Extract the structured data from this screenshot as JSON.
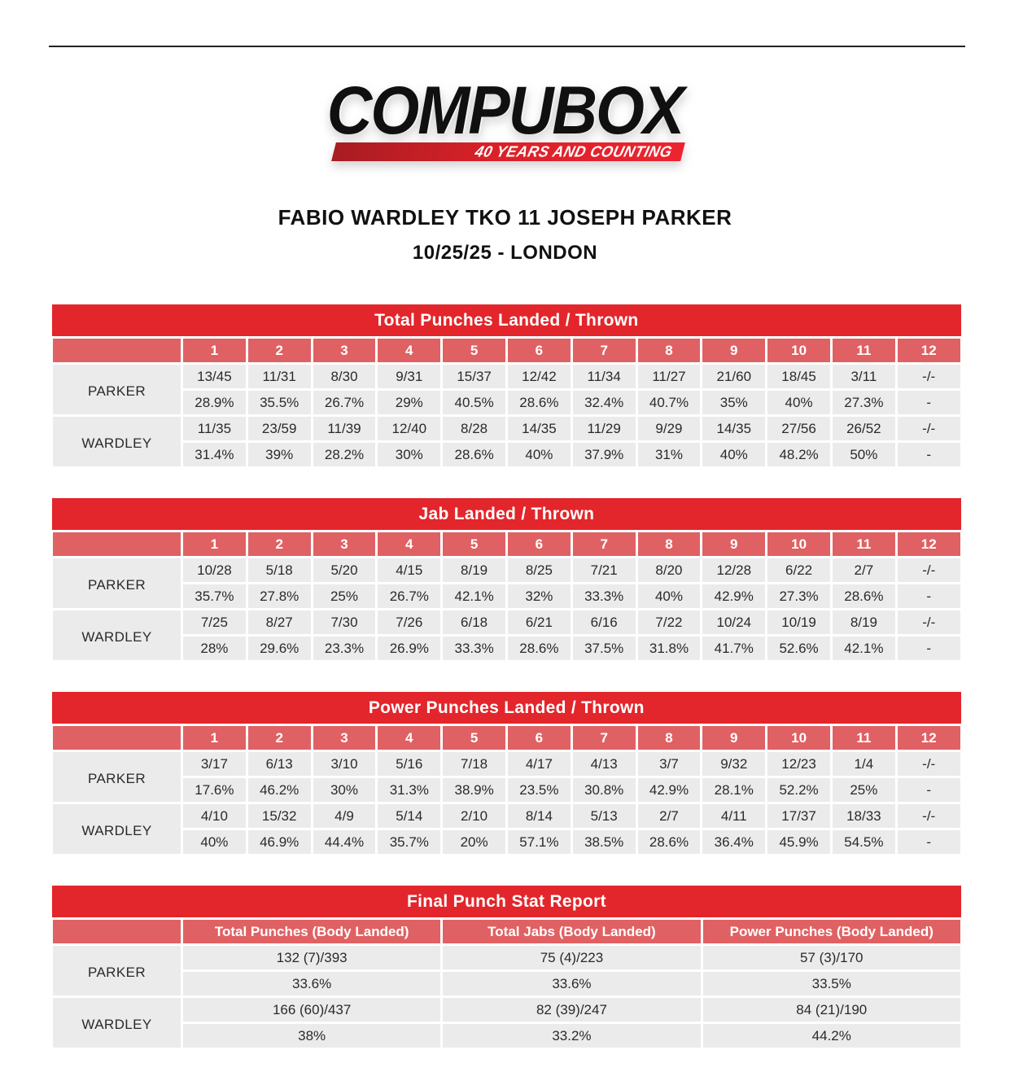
{
  "logo": {
    "brand": "COMPUBOX",
    "tagline": "40 YEARS AND COUNTING"
  },
  "header": {
    "title": "FABIO WARDLEY TKO 11 JOSEPH PARKER",
    "subtitle": "10/25/25 - LONDON"
  },
  "colors": {
    "header_red": "#e2262b",
    "subheader_red": "#e06163",
    "row_gray": "#ebebeb"
  },
  "round_tables": [
    {
      "title": "Total Punches Landed / Thrown",
      "rounds": [
        "1",
        "2",
        "3",
        "4",
        "5",
        "6",
        "7",
        "8",
        "9",
        "10",
        "11",
        "12"
      ],
      "rows": [
        {
          "fighter": "PARKER",
          "values": [
            "13/45",
            "11/31",
            "8/30",
            "9/31",
            "15/37",
            "12/42",
            "11/34",
            "11/27",
            "21/60",
            "18/45",
            "3/11",
            "-/-"
          ],
          "pcts": [
            "28.9%",
            "35.5%",
            "26.7%",
            "29%",
            "40.5%",
            "28.6%",
            "32.4%",
            "40.7%",
            "35%",
            "40%",
            "27.3%",
            "-"
          ]
        },
        {
          "fighter": "WARDLEY",
          "values": [
            "11/35",
            "23/59",
            "11/39",
            "12/40",
            "8/28",
            "14/35",
            "11/29",
            "9/29",
            "14/35",
            "27/56",
            "26/52",
            "-/-"
          ],
          "pcts": [
            "31.4%",
            "39%",
            "28.2%",
            "30%",
            "28.6%",
            "40%",
            "37.9%",
            "31%",
            "40%",
            "48.2%",
            "50%",
            "-"
          ]
        }
      ]
    },
    {
      "title": "Jab Landed / Thrown",
      "rounds": [
        "1",
        "2",
        "3",
        "4",
        "5",
        "6",
        "7",
        "8",
        "9",
        "10",
        "11",
        "12"
      ],
      "rows": [
        {
          "fighter": "PARKER",
          "values": [
            "10/28",
            "5/18",
            "5/20",
            "4/15",
            "8/19",
            "8/25",
            "7/21",
            "8/20",
            "12/28",
            "6/22",
            "2/7",
            "-/-"
          ],
          "pcts": [
            "35.7%",
            "27.8%",
            "25%",
            "26.7%",
            "42.1%",
            "32%",
            "33.3%",
            "40%",
            "42.9%",
            "27.3%",
            "28.6%",
            "-"
          ]
        },
        {
          "fighter": "WARDLEY",
          "values": [
            "7/25",
            "8/27",
            "7/30",
            "7/26",
            "6/18",
            "6/21",
            "6/16",
            "7/22",
            "10/24",
            "10/19",
            "8/19",
            "-/-"
          ],
          "pcts": [
            "28%",
            "29.6%",
            "23.3%",
            "26.9%",
            "33.3%",
            "28.6%",
            "37.5%",
            "31.8%",
            "41.7%",
            "52.6%",
            "42.1%",
            "-"
          ]
        }
      ]
    },
    {
      "title": "Power Punches Landed / Thrown",
      "rounds": [
        "1",
        "2",
        "3",
        "4",
        "5",
        "6",
        "7",
        "8",
        "9",
        "10",
        "11",
        "12"
      ],
      "rows": [
        {
          "fighter": "PARKER",
          "values": [
            "3/17",
            "6/13",
            "3/10",
            "5/16",
            "7/18",
            "4/17",
            "4/13",
            "3/7",
            "9/32",
            "12/23",
            "1/4",
            "-/-"
          ],
          "pcts": [
            "17.6%",
            "46.2%",
            "30%",
            "31.3%",
            "38.9%",
            "23.5%",
            "30.8%",
            "42.9%",
            "28.1%",
            "52.2%",
            "25%",
            "-"
          ]
        },
        {
          "fighter": "WARDLEY",
          "values": [
            "4/10",
            "15/32",
            "4/9",
            "5/14",
            "2/10",
            "8/14",
            "5/13",
            "2/7",
            "4/11",
            "17/37",
            "18/33",
            "-/-"
          ],
          "pcts": [
            "40%",
            "46.9%",
            "44.4%",
            "35.7%",
            "20%",
            "57.1%",
            "38.5%",
            "28.6%",
            "36.4%",
            "45.9%",
            "54.5%",
            "-"
          ]
        }
      ]
    }
  ],
  "final_table": {
    "title": "Final Punch Stat Report",
    "columns": [
      "Total Punches (Body Landed)",
      "Total Jabs (Body Landed)",
      "Power Punches (Body Landed)"
    ],
    "rows": [
      {
        "fighter": "PARKER",
        "values": [
          "132 (7)/393",
          "75 (4)/223",
          "57 (3)/170"
        ],
        "pcts": [
          "33.6%",
          "33.6%",
          "33.5%"
        ]
      },
      {
        "fighter": "WARDLEY",
        "values": [
          "166 (60)/437",
          "82 (39)/247",
          "84 (21)/190"
        ],
        "pcts": [
          "38%",
          "33.2%",
          "44.2%"
        ]
      }
    ]
  }
}
